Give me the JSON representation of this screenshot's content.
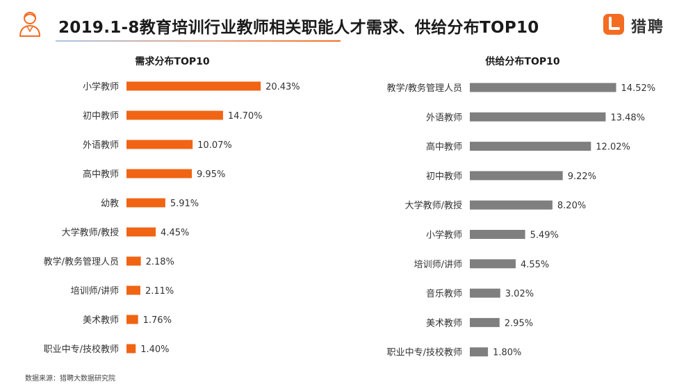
{
  "header": {
    "title": "2019.1-8教育培训行业教师相关职能人才需求、供给分布TOP10",
    "logo_text": "猎聘",
    "icon": "person-icon",
    "logo_icon": "liepin-logo-icon"
  },
  "colors": {
    "demand_bar": "#f06414",
    "supply_bar": "#7f7f7f",
    "logo": "#f36c21"
  },
  "chart_data": [
    {
      "type": "bar",
      "orientation": "horizontal",
      "title": "需求分布TOP10",
      "categories": [
        "小学教师",
        "初中教师",
        "外语教师",
        "高中教师",
        "幼教",
        "大学教师/教授",
        "教学/教务管理人员",
        "培训师/讲师",
        "美术教师",
        "职业中专/技校教师"
      ],
      "values": [
        20.43,
        14.7,
        10.07,
        9.95,
        5.91,
        4.45,
        2.18,
        2.11,
        1.76,
        1.4
      ],
      "labels": [
        "20.43%",
        "14.70%",
        "10.07%",
        "9.95%",
        "5.91%",
        "4.45%",
        "2.18%",
        "2.11%",
        "1.76%",
        "1.40%"
      ],
      "unit": "%",
      "grid": false,
      "legend": "none"
    },
    {
      "type": "bar",
      "orientation": "horizontal",
      "title": "供给分布TOP10",
      "categories": [
        "教学/教务管理人员",
        "外语教师",
        "高中教师",
        "初中教师",
        "大学教师/教授",
        "小学教师",
        "培训师/讲师",
        "音乐教师",
        "美术教师",
        "职业中专/技校教师"
      ],
      "values": [
        14.52,
        13.48,
        12.02,
        9.22,
        8.2,
        5.49,
        4.55,
        3.02,
        2.95,
        1.8
      ],
      "labels": [
        "14.52%",
        "13.48%",
        "12.02%",
        "9.22%",
        "8.20%",
        "5.49%",
        "4.55%",
        "3.02%",
        "2.95%",
        "1.80%"
      ],
      "unit": "%",
      "grid": false,
      "legend": "none"
    }
  ],
  "footer": {
    "source": "数据来源：猎聘大数据研究院"
  }
}
